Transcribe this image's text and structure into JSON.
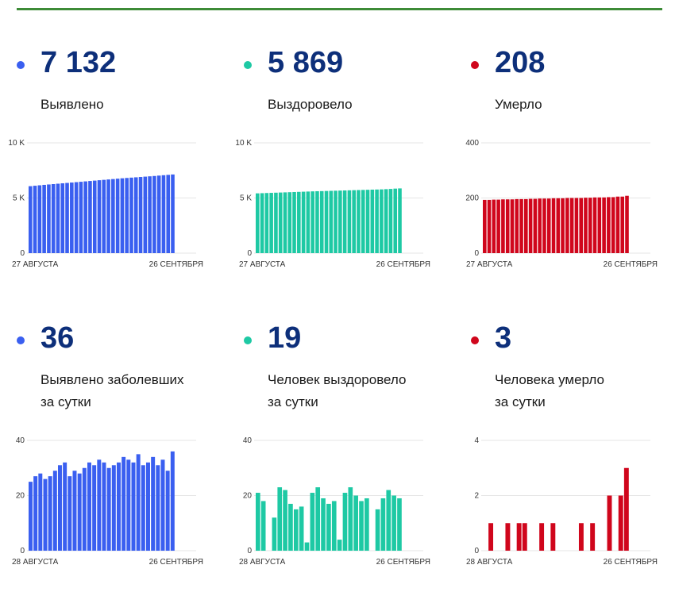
{
  "colors": {
    "blue": "#3a5ff0",
    "teal": "#1ec9a4",
    "red": "#d0061c",
    "rule": "#3d8b37"
  },
  "cards": [
    {
      "value": "7 132",
      "label1": "Выявлено",
      "label2": "",
      "color": "#3a5ff0",
      "chart_data": {
        "type": "bar",
        "ylim": [
          0,
          10000
        ],
        "yticks": [
          "0",
          "5 K",
          "10 K"
        ],
        "yticks_values": [
          0,
          5000,
          10000
        ],
        "x_start": "27 АВГУСТА",
        "x_end": "26 СЕНТЯБРЯ",
        "values": [
          6070,
          6110,
          6150,
          6190,
          6225,
          6260,
          6295,
          6330,
          6365,
          6400,
          6435,
          6470,
          6505,
          6540,
          6575,
          6610,
          6645,
          6680,
          6715,
          6750,
          6785,
          6815,
          6845,
          6875,
          6905,
          6935,
          6965,
          6995,
          7030,
          7065,
          7096,
          7132
        ]
      }
    },
    {
      "value": "5 869",
      "label1": "Выздоровело",
      "label2": "",
      "color": "#1ec9a4",
      "chart_data": {
        "type": "bar",
        "ylim": [
          0,
          10000
        ],
        "yticks": [
          "0",
          "5 K",
          "10 K"
        ],
        "yticks_values": [
          0,
          5000,
          10000
        ],
        "x_start": "27 АВГУСТА",
        "x_end": "26 СЕНТЯБРЯ",
        "values": [
          5420,
          5435,
          5450,
          5465,
          5480,
          5495,
          5510,
          5525,
          5540,
          5555,
          5570,
          5585,
          5600,
          5612,
          5624,
          5636,
          5648,
          5660,
          5672,
          5684,
          5696,
          5708,
          5720,
          5732,
          5744,
          5756,
          5768,
          5780,
          5800,
          5820,
          5850,
          5869
        ]
      }
    },
    {
      "value": "208",
      "label1": "Умерло",
      "label2": "",
      "color": "#d0061c",
      "chart_data": {
        "type": "bar",
        "ylim": [
          0,
          400
        ],
        "yticks": [
          "0",
          "200",
          "400"
        ],
        "yticks_values": [
          0,
          200,
          400
        ],
        "x_start": "27 АВГУСТА",
        "x_end": "26 СЕНТЯБРЯ",
        "values": [
          193,
          193,
          194,
          194,
          195,
          195,
          195,
          196,
          196,
          196,
          197,
          197,
          198,
          198,
          198,
          199,
          199,
          199,
          200,
          200,
          200,
          200,
          201,
          201,
          202,
          202,
          202,
          203,
          203,
          205,
          205,
          208
        ]
      }
    },
    {
      "value": "36",
      "label1": "Выявлено заболевших",
      "label2": "за сутки",
      "color": "#3a5ff0",
      "chart_data": {
        "type": "bar",
        "ylim": [
          0,
          40
        ],
        "yticks": [
          "0",
          "20",
          "40"
        ],
        "yticks_values": [
          0,
          20,
          40
        ],
        "x_start": "28 АВГУСТА",
        "x_end": "26 СЕНТЯБРЯ",
        "values": [
          25,
          27,
          28,
          26,
          27,
          29,
          31,
          32,
          27,
          29,
          28,
          30,
          32,
          31,
          33,
          32,
          30,
          31,
          32,
          34,
          33,
          32,
          35,
          31,
          32,
          34,
          31,
          33,
          29,
          36
        ]
      }
    },
    {
      "value": "19",
      "label1": "Человек выздоровело",
      "label2": "за сутки",
      "color": "#1ec9a4",
      "chart_data": {
        "type": "bar",
        "ylim": [
          0,
          40
        ],
        "yticks": [
          "0",
          "20",
          "40"
        ],
        "yticks_values": [
          0,
          20,
          40
        ],
        "x_start": "28 АВГУСТА",
        "x_end": "26 СЕНТЯБРЯ",
        "values": [
          21,
          18,
          0,
          12,
          23,
          22,
          17,
          15,
          16,
          3,
          21,
          23,
          19,
          17,
          18,
          4,
          21,
          23,
          20,
          18,
          19,
          0,
          15,
          19,
          22,
          20,
          19
        ]
      }
    },
    {
      "value": "3",
      "label1": "Человека умерло",
      "label2": "за сутки",
      "color": "#d0061c",
      "chart_data": {
        "type": "bar",
        "ylim": [
          0,
          4
        ],
        "yticks": [
          "0",
          "2",
          "4"
        ],
        "yticks_values": [
          0,
          2,
          4
        ],
        "x_start": "28 АВГУСТА",
        "x_end": "26 СЕНТЯБРЯ",
        "values": [
          0,
          1,
          0,
          0,
          1,
          0,
          1,
          1,
          0,
          0,
          1,
          0,
          1,
          0,
          0,
          0,
          0,
          1,
          0,
          1,
          0,
          0,
          2,
          0,
          2,
          3
        ]
      }
    }
  ]
}
